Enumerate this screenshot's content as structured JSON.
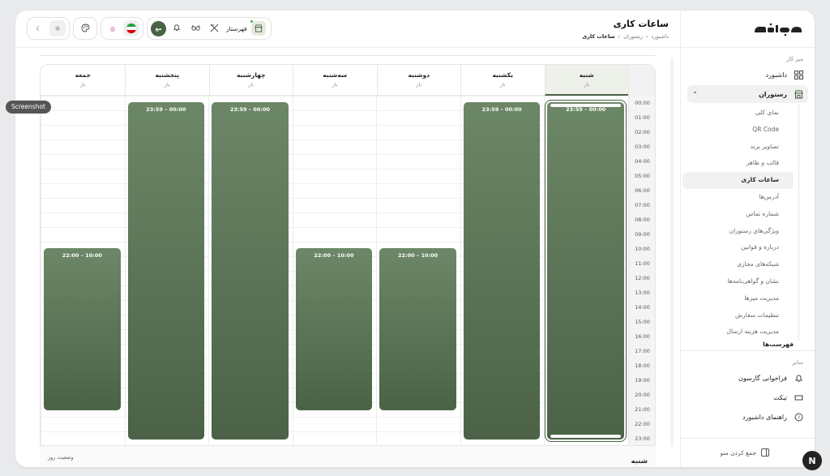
{
  "app": {
    "brand": "فهرستار",
    "accent": "#4a6246"
  },
  "header": {
    "title": "ساعات کاری",
    "breadcrumb": [
      "داشبورد",
      "رستوران",
      "ساعات کاری"
    ],
    "store_name": "فهرستار",
    "avatar_initials": "مع"
  },
  "sidebar": {
    "section_work": "میز کار",
    "dashboard": "داشبورد",
    "restaurant": "رستوران",
    "sub_items": [
      "نمای کلی",
      "QR Code",
      "تصاویر برند",
      "قالب و ظاهر",
      "ساعات کاری",
      "آدرس‌ها",
      "شماره تماس",
      "ویژگی‌های رستوران",
      "درباره و قوانین",
      "شبکه‌های مجازی",
      "نشان و گواهی‌نامه‌ها",
      "مدیریت میزها",
      "تنظیمات سفارش",
      "مدیریت هزینه ارسال"
    ],
    "active_sub_index": 4,
    "peek_item": "فهرست‌ها",
    "section_other": "سایر",
    "waiter_call": "فراخوانی گارسون",
    "ticket": "تیکت",
    "guide": "راهنمای داشبورد",
    "collapse_menu": "جمع کردن منو"
  },
  "schedule": {
    "days": [
      {
        "name": "شنبه",
        "status": "باز",
        "selected": true,
        "start": "00:00",
        "end": "23:59"
      },
      {
        "name": "یکشنبه",
        "status": "باز",
        "selected": false,
        "start": "00:00",
        "end": "23:59"
      },
      {
        "name": "دوشنبه",
        "status": "باز",
        "selected": false,
        "start": "10:00",
        "end": "22:00"
      },
      {
        "name": "سه‌شنبه",
        "status": "باز",
        "selected": false,
        "start": "10:00",
        "end": "22:00"
      },
      {
        "name": "چهارشنبه",
        "status": "باز",
        "selected": false,
        "start": "00:00",
        "end": "23:59"
      },
      {
        "name": "پنجشنبه",
        "status": "باز",
        "selected": false,
        "start": "00:00",
        "end": "23:59"
      },
      {
        "name": "جمعه",
        "status": "باز",
        "selected": false,
        "start": "10:00",
        "end": "22:00"
      }
    ],
    "hours": [
      "00:00",
      "01:00",
      "02:00",
      "03:00",
      "04:00",
      "05:00",
      "06:00",
      "07:00",
      "08:00",
      "09:00",
      "10:00",
      "11:00",
      "12:00",
      "13:00",
      "14:00",
      "15:00",
      "16:00",
      "17:00",
      "18:00",
      "19:00",
      "20:00",
      "21:00",
      "22:00",
      "23:00"
    ],
    "selected_day_title": "شنبه",
    "day_status_label": "وضعیت روز"
  },
  "overlay": {
    "screenshot_tag": "Screenshot",
    "corner_badge": "N"
  }
}
